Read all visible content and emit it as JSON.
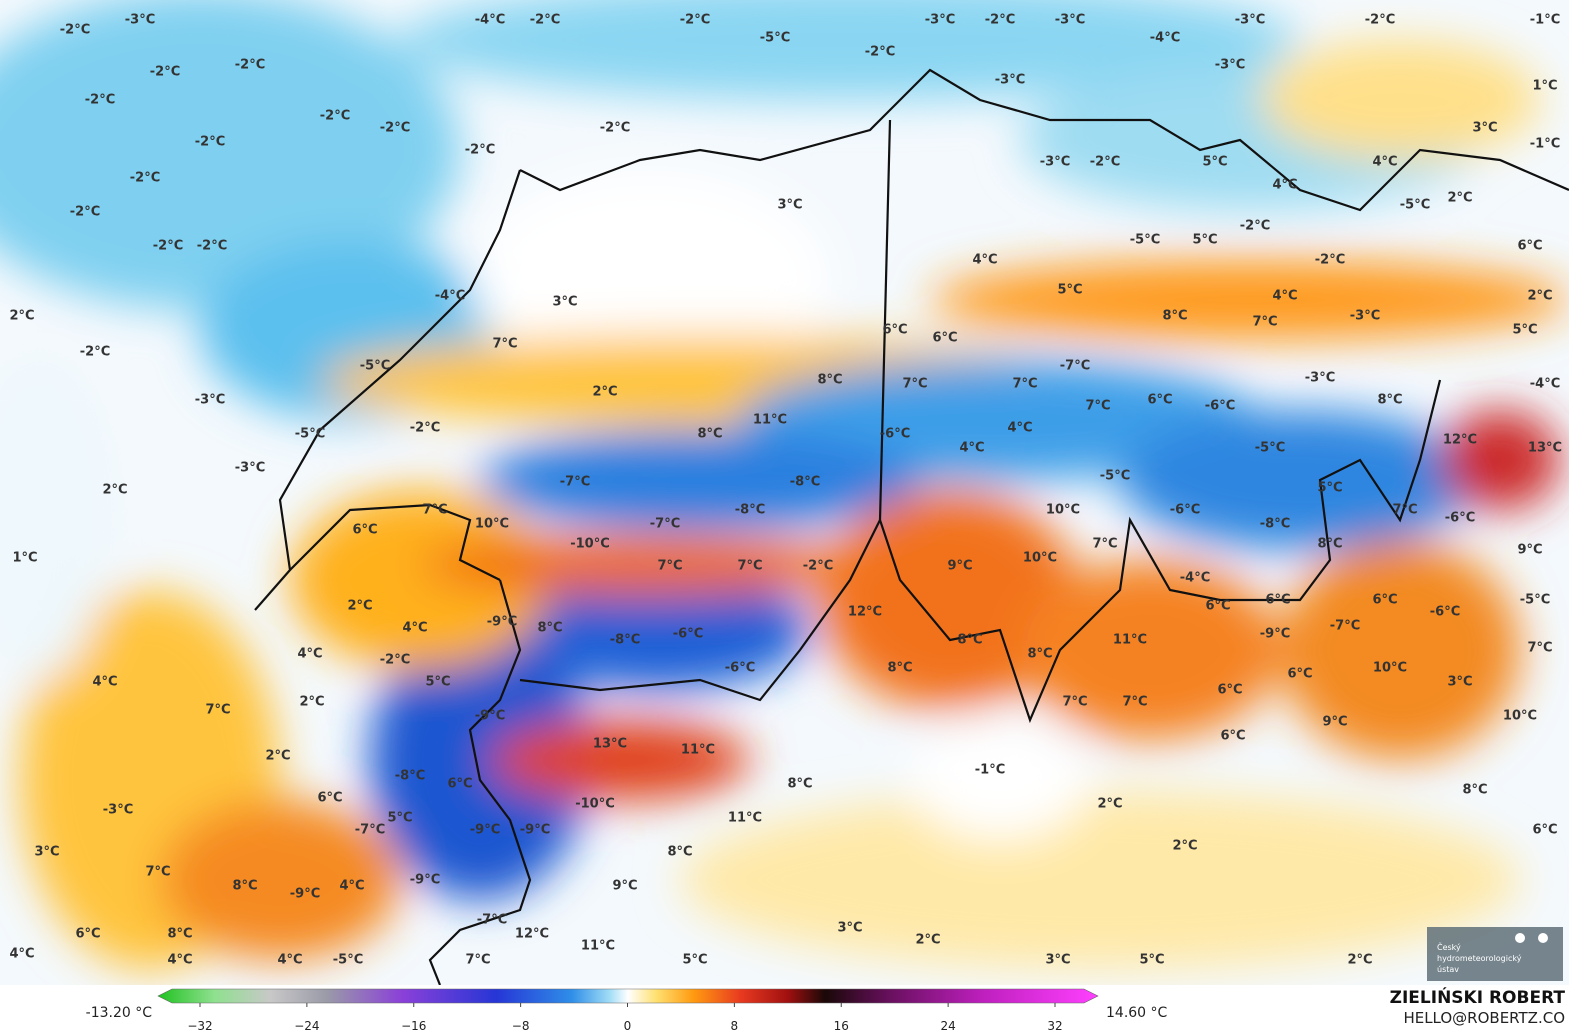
{
  "map": {
    "labels": [
      "-3°C",
      "-2°C",
      "-4°C",
      "-2°C",
      "-2°C",
      "-5°C",
      "-3°C",
      "-2°C",
      "-3°C",
      "-4°C",
      "-3°C",
      "-2°C",
      "-1°C",
      "-2°C",
      "-2°C",
      "-2°C",
      "-3°C",
      "-3°C",
      "1°C",
      "-2°C",
      "-2°C",
      "-2°C",
      "-2°C",
      "-2°C",
      "-2°C",
      "3°C",
      "-1°C",
      "-3°C",
      "-2°C",
      "5°C",
      "4°C",
      "-2°C",
      "4°C",
      "3°C",
      "-5°C",
      "2°C",
      "-2°C",
      "-2°C",
      "-2°C",
      "-5°C",
      "5°C",
      "-2°C",
      "6°C",
      "4°C",
      "-2°C",
      "-4°C",
      "3°C",
      "5°C",
      "4°C",
      "2°C",
      "2°C",
      "8°C",
      "7°C",
      "-3°C",
      "6°C",
      "6°C",
      "5°C",
      "-2°C",
      "7°C",
      "-5°C",
      "-7°C",
      "7°C",
      "-3°C",
      "8°C",
      "7°C",
      "-4°C",
      "2°C",
      "-3°C",
      "6°C",
      "-6°C",
      "8°C",
      "7°C",
      "11°C",
      "-2°C",
      "8°C",
      "4°C",
      "-5°C",
      "-6°C",
      "12°C",
      "13°C",
      "4°C",
      "-5°C",
      "-3°C",
      "-5°C",
      "-8°C",
      "-7°C",
      "2°C",
      "5°C",
      "10°C",
      "-8°C",
      "7°C",
      "10°C",
      "-6°C",
      "-7°C",
      "-8°C",
      "7°C",
      "-6°C",
      "6°C",
      "-10°C",
      "7°C",
      "8°C",
      "9°C",
      "1°C",
      "10°C",
      "7°C",
      "7°C",
      "-2°C",
      "9°C",
      "-4°C",
      "2°C",
      "6°C",
      "6°C",
      "6°C",
      "-6°C",
      "-5°C",
      "12°C",
      "-9°C",
      "4°C",
      "8°C",
      "-8°C",
      "-6°C",
      "-9°C",
      "-7°C",
      "8°C",
      "11°C",
      "8°C",
      "7°C",
      "4°C",
      "-2°C",
      "-6°C",
      "8°C",
      "10°C",
      "6°C",
      "4°C",
      "5°C",
      "6°C",
      "3°C",
      "2°C",
      "7°C",
      "7°C",
      "7°C",
      "-9°C",
      "9°C",
      "10°C",
      "13°C",
      "11°C",
      "6°C",
      "2°C",
      "-1°C",
      "-8°C",
      "6°C",
      "8°C",
      "8°C",
      "6°C",
      "2°C",
      "-10°C",
      "-3°C",
      "5°C",
      "11°C",
      "6°C",
      "-7°C",
      "-9°C",
      "-9°C",
      "2°C",
      "3°C",
      "8°C",
      "7°C",
      "-9°C",
      "8°C",
      "4°C",
      "9°C",
      "-9°C",
      "-7°C",
      "3°C",
      "6°C",
      "8°C",
      "12°C",
      "11°C",
      "2°C",
      "4°C",
      "4°C",
      "4°C",
      "-5°C",
      "7°C",
      "5°C",
      "3°C",
      "5°C",
      "2°C"
    ]
  },
  "legend": {
    "min_label": "-13.20 °C",
    "max_label": "14.60 °C",
    "ticks": [
      "−32",
      "−24",
      "−16",
      "−8",
      "0",
      "8",
      "16",
      "24",
      "32"
    ]
  },
  "credit": {
    "name": "ZIELIŃSKI ROBERT",
    "email": "HELLO@ROBERTZ.CO"
  },
  "logo": {
    "lines": [
      "Český",
      "hydrometeorologický",
      "ústav"
    ]
  }
}
